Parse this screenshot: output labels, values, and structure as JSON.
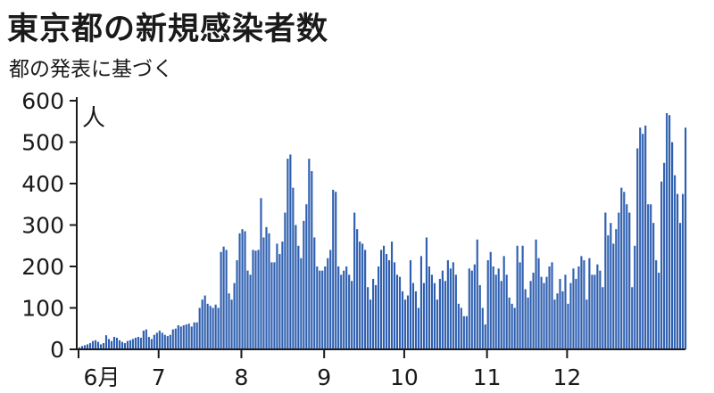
{
  "header": {
    "title": "東京都の新規感染者数",
    "subtitle": "都の発表に基づく"
  },
  "colors": {
    "bar": "#2e5fb0",
    "axis": "#1a1a1a"
  },
  "chart_data": {
    "type": "bar",
    "title": "東京都の新規感染者数",
    "subtitle": "都の発表に基づく",
    "ylabel": "人",
    "ylim": [
      0,
      600
    ],
    "yticks": [
      0,
      100,
      200,
      300,
      400,
      500,
      600
    ],
    "month_labels": [
      "6月",
      "7",
      "8",
      "9",
      "10",
      "11",
      "12"
    ],
    "month_start_index": [
      0,
      30,
      61,
      92,
      122,
      153,
      183
    ],
    "start_label": "6月",
    "values": [
      5,
      8,
      10,
      12,
      15,
      20,
      22,
      18,
      12,
      15,
      34,
      25,
      20,
      30,
      28,
      22,
      18,
      15,
      20,
      22,
      25,
      28,
      30,
      28,
      45,
      48,
      30,
      25,
      35,
      40,
      45,
      40,
      35,
      32,
      35,
      48,
      50,
      58,
      55,
      58,
      60,
      62,
      55,
      65,
      65,
      100,
      120,
      130,
      110,
      105,
      100,
      108,
      100,
      235,
      248,
      240,
      135,
      120,
      160,
      215,
      280,
      290,
      285,
      190,
      180,
      240,
      238,
      240,
      365,
      270,
      295,
      280,
      210,
      210,
      255,
      230,
      260,
      330,
      460,
      470,
      390,
      300,
      250,
      220,
      310,
      350,
      460,
      430,
      270,
      200,
      190,
      190,
      200,
      220,
      240,
      385,
      380,
      200,
      180,
      190,
      200,
      180,
      165,
      330,
      290,
      260,
      255,
      240,
      150,
      120,
      170,
      155,
      200,
      240,
      250,
      230,
      215,
      260,
      210,
      180,
      175,
      140,
      120,
      130,
      215,
      160,
      140,
      100,
      225,
      160,
      270,
      200,
      180,
      160,
      120,
      170,
      190,
      165,
      215,
      195,
      210,
      180,
      110,
      100,
      80,
      80,
      195,
      190,
      205,
      265,
      155,
      100,
      60,
      215,
      235,
      200,
      180,
      195,
      165,
      225,
      180,
      125,
      110,
      100,
      250,
      210,
      250,
      145,
      125,
      165,
      185,
      265,
      220,
      175,
      160,
      175,
      200,
      210,
      120,
      135,
      170,
      140,
      180,
      110,
      160,
      195,
      170,
      200,
      225,
      215,
      120,
      220,
      180,
      180,
      205,
      190,
      150,
      330,
      275,
      305,
      255,
      290,
      330,
      390,
      380,
      350,
      330,
      150,
      250,
      485,
      535,
      520,
      540,
      350,
      350,
      305,
      215,
      185,
      405,
      450,
      570,
      565,
      500,
      420,
      375,
      305,
      375,
      535
    ]
  }
}
